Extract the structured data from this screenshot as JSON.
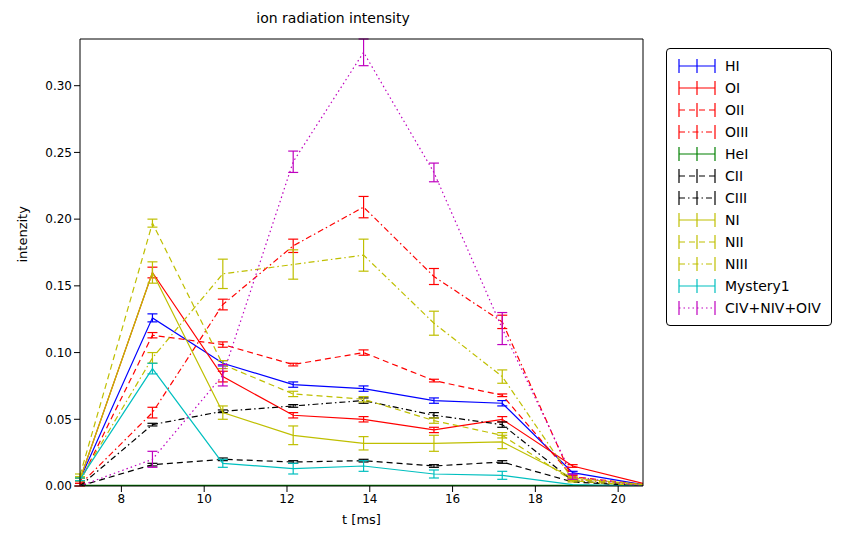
{
  "chart_data": {
    "type": "line",
    "title": "ion radiation intensity",
    "x_label": "t [ms]",
    "y_label": "intenzity",
    "x": [
      7.0,
      8.75,
      10.45,
      12.15,
      13.85,
      15.55,
      17.2,
      18.9,
      20.6
    ],
    "xlim": [
      7.0,
      20.6
    ],
    "xticks": [
      8,
      10,
      12,
      14,
      16,
      18,
      20
    ],
    "ylim": [
      0,
      0.335
    ],
    "yticks": [
      {
        "value": 0,
        "label": "0.00"
      },
      {
        "value": 0.05,
        "label": "0.05"
      },
      {
        "value": 0.1,
        "label": "0.10"
      },
      {
        "value": 0.15,
        "label": "0.15"
      },
      {
        "value": 0.2,
        "label": "0.20"
      },
      {
        "value": 0.25,
        "label": "0.25"
      },
      {
        "value": 0.3,
        "label": "0.30"
      }
    ],
    "grid": false,
    "legend": "right",
    "series": [
      {
        "name": "HI",
        "color": "#0000ff",
        "line_style": "solid",
        "values": [
          0.005,
          0.126,
          0.092,
          0.076,
          0.073,
          0.064,
          0.062,
          0.01,
          0.001
        ],
        "errors": [
          0.001,
          0.003,
          0.002,
          0.002,
          0.002,
          0.002,
          0.002,
          0.001,
          0.0
        ]
      },
      {
        "name": "OI",
        "color": "#ff0000",
        "line_style": "solid",
        "values": [
          0.005,
          0.16,
          0.082,
          0.053,
          0.05,
          0.042,
          0.05,
          0.015,
          0.002
        ],
        "errors": [
          0.001,
          0.004,
          0.004,
          0.002,
          0.002,
          0.002,
          0.002,
          0.001,
          0.0
        ]
      },
      {
        "name": "OII",
        "color": "#ff0000",
        "line_style": "dashed",
        "values": [
          0.003,
          0.113,
          0.106,
          0.091,
          0.1,
          0.079,
          0.068,
          0.007,
          0.001
        ],
        "errors": [
          0.001,
          0.002,
          0.002,
          0.001,
          0.002,
          0.001,
          0.001,
          0.001,
          0.0
        ]
      },
      {
        "name": "OIII",
        "color": "#ff0000",
        "line_style": "dashdot",
        "values": [
          0.001,
          0.055,
          0.136,
          0.18,
          0.209,
          0.157,
          0.123,
          0.005,
          0.001
        ],
        "errors": [
          0.001,
          0.004,
          0.004,
          0.005,
          0.008,
          0.006,
          0.005,
          0.001,
          0.0
        ]
      },
      {
        "name": "HeI",
        "color": "#008000",
        "line_style": "solid",
        "values": [
          0.0005,
          0.0005,
          0.0005,
          0.0005,
          0.0005,
          0.0005,
          0.0005,
          0.0005,
          0.0005
        ],
        "errors": [
          0.0,
          0.0,
          0.0,
          0.0,
          0.0,
          0.0,
          0.0,
          0.0,
          0.0
        ]
      },
      {
        "name": "CII",
        "color": "#000000",
        "line_style": "dashed",
        "values": [
          0.0,
          0.016,
          0.02,
          0.018,
          0.019,
          0.015,
          0.018,
          0.003,
          0.0
        ],
        "errors": [
          0.0,
          0.001,
          0.001,
          0.001,
          0.001,
          0.001,
          0.001,
          0.0,
          0.0
        ]
      },
      {
        "name": "CIII",
        "color": "#000000",
        "line_style": "dashdot",
        "values": [
          0.0,
          0.046,
          0.056,
          0.06,
          0.064,
          0.053,
          0.046,
          0.004,
          0.0
        ],
        "errors": [
          0.0,
          0.001,
          0.001,
          0.001,
          0.002,
          0.002,
          0.002,
          0.0,
          0.0
        ]
      },
      {
        "name": "NI",
        "color": "#bfbf00",
        "line_style": "solid",
        "values": [
          0.005,
          0.16,
          0.055,
          0.038,
          0.032,
          0.032,
          0.033,
          0.006,
          0.001
        ],
        "errors": [
          0.001,
          0.008,
          0.005,
          0.007,
          0.005,
          0.006,
          0.005,
          0.001,
          0.0
        ]
      },
      {
        "name": "NII",
        "color": "#bfbf00",
        "line_style": "dashed",
        "values": [
          0.008,
          0.197,
          0.091,
          0.069,
          0.065,
          0.049,
          0.038,
          0.004,
          0.0
        ],
        "errors": [
          0.001,
          0.003,
          0.003,
          0.002,
          0.002,
          0.002,
          0.002,
          0.001,
          0.0
        ]
      },
      {
        "name": "NIII",
        "color": "#bfbf00",
        "line_style": "dashdot",
        "values": [
          0.005,
          0.096,
          0.159,
          0.166,
          0.173,
          0.122,
          0.082,
          0.005,
          0.001
        ],
        "errors": [
          0.001,
          0.004,
          0.011,
          0.011,
          0.012,
          0.009,
          0.005,
          0.001,
          0.0
        ]
      },
      {
        "name": "Mystery1",
        "color": "#00bfbf",
        "line_style": "solid",
        "values": [
          0.005,
          0.088,
          0.017,
          0.013,
          0.015,
          0.009,
          0.008,
          0.001,
          0.0
        ],
        "errors": [
          0.001,
          0.004,
          0.003,
          0.004,
          0.004,
          0.003,
          0.003,
          0.0,
          0.0
        ]
      },
      {
        "name": "CIV+NIV+OIV",
        "color": "#bf00bf",
        "line_style": "dotted",
        "values": [
          0.0,
          0.02,
          0.083,
          0.243,
          0.325,
          0.235,
          0.118,
          0.007,
          0.0
        ],
        "errors": [
          0.0,
          0.006,
          0.008,
          0.008,
          0.01,
          0.007,
          0.012,
          0.002,
          0.0
        ]
      }
    ]
  }
}
